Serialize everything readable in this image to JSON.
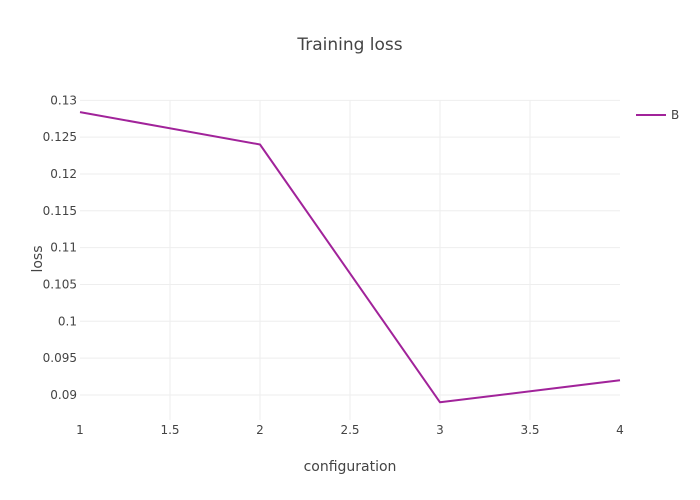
{
  "chart_data": {
    "type": "line",
    "title": "Training loss",
    "xlabel": "configuration",
    "ylabel": "loss",
    "xlim": [
      1,
      4
    ],
    "ylim": [
      0.0866,
      0.1314
    ],
    "x_ticks": [
      "1",
      "1.5",
      "2",
      "2.5",
      "3",
      "3.5",
      "4"
    ],
    "x_tick_values": [
      1,
      1.5,
      2,
      2.5,
      3,
      3.5,
      4
    ],
    "y_ticks": [
      "0.09",
      "0.095",
      "0.1",
      "0.105",
      "0.11",
      "0.115",
      "0.12",
      "0.125",
      "0.13"
    ],
    "y_tick_values": [
      0.09,
      0.095,
      0.1,
      0.105,
      0.11,
      0.115,
      0.12,
      0.125,
      0.13
    ],
    "grid": true,
    "legend_position": "top-right",
    "series": [
      {
        "name": "B",
        "color": "#a1239a",
        "x": [
          1,
          2,
          3,
          4
        ],
        "y": [
          0.1284,
          0.124,
          0.089,
          0.092
        ]
      }
    ]
  }
}
